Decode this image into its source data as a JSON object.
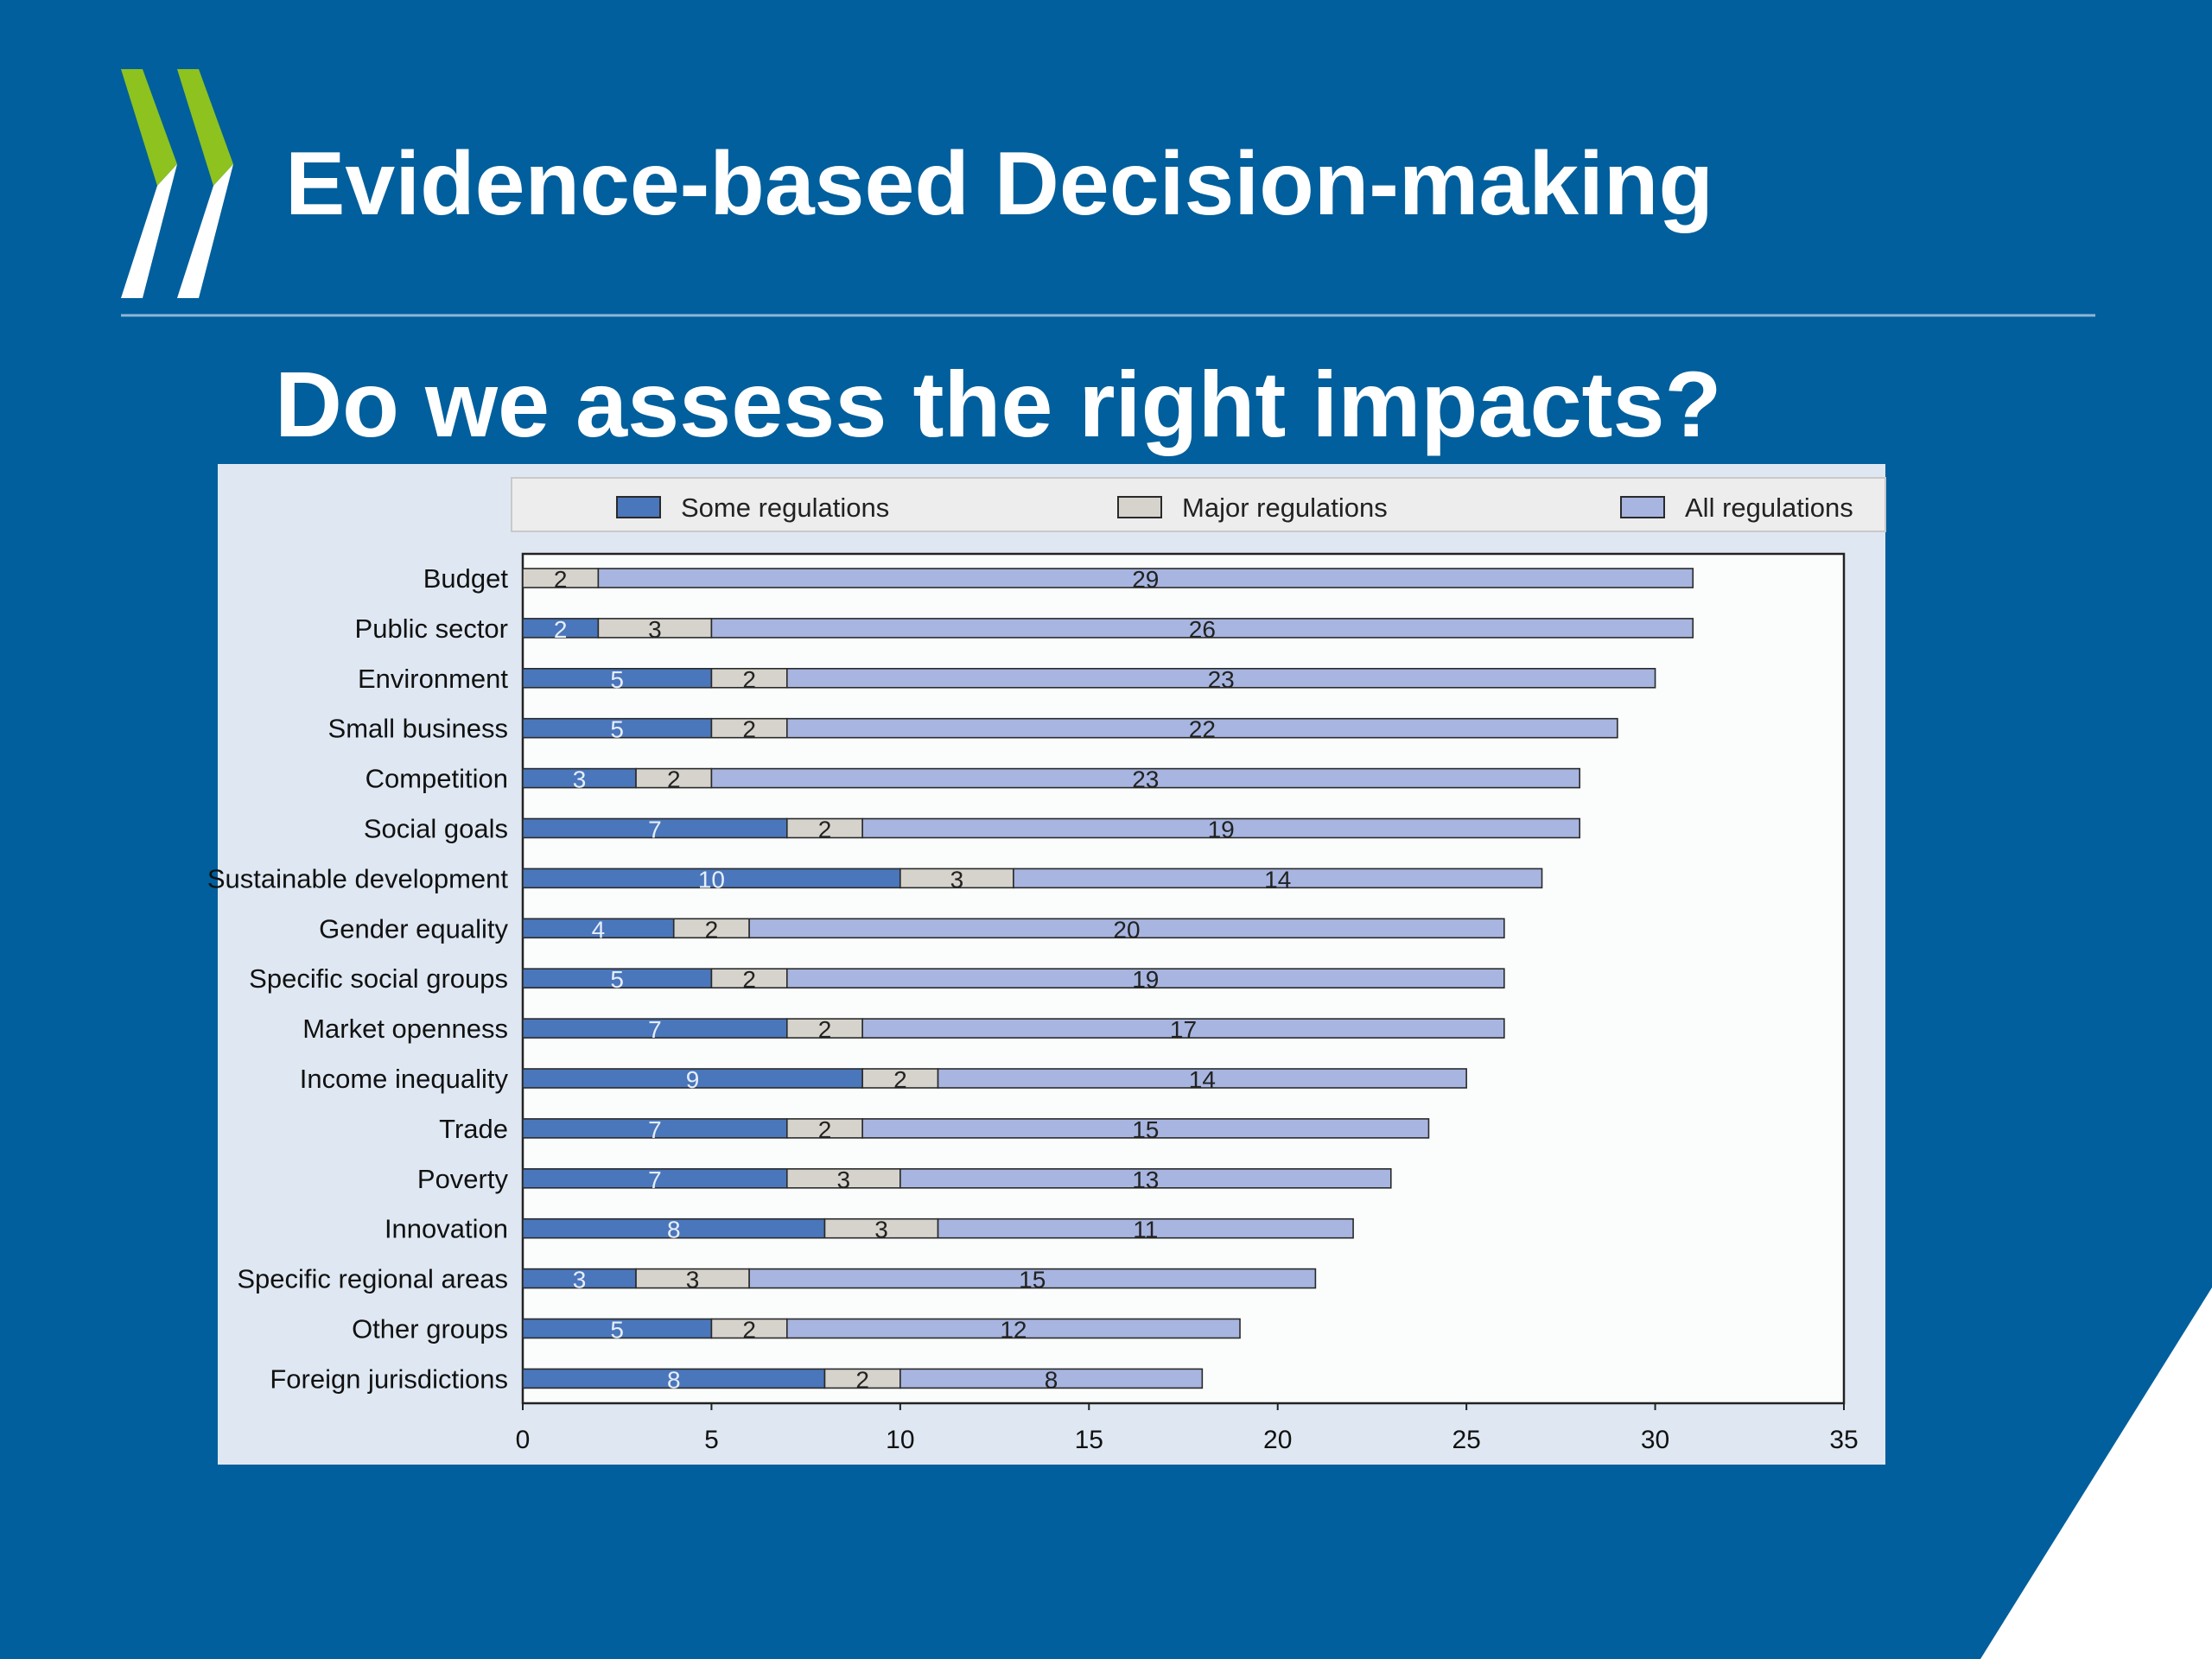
{
  "slide": {
    "title": "Evidence-based Decision-making",
    "subtitle": "Do we assess the right impacts?"
  },
  "colors": {
    "background": "#005f9c",
    "logo_green": "#8dc21f",
    "logo_white": "#ffffff",
    "chart_panel": "#dfe8f2",
    "plot_bg": "#fbfdfd",
    "legend_bg": "#ededed",
    "some": "#4a76bb",
    "major": "#d6d3cc",
    "all": "#a7b5e0"
  },
  "chart_data": {
    "type": "bar",
    "orientation": "horizontal",
    "stacked": true,
    "categories": [
      "Budget",
      "Public sector",
      "Environment",
      "Small business",
      "Competition",
      "Social goals",
      "Sustainable development",
      "Gender equality",
      "Specific social groups",
      "Market openness",
      "Income inequality",
      "Trade",
      "Poverty",
      "Innovation",
      "Specific regional areas",
      "Other groups",
      "Foreign jurisdictions"
    ],
    "series": [
      {
        "name": "Some regulations",
        "color": "#4a76bb",
        "values": [
          0,
          2,
          5,
          5,
          3,
          7,
          10,
          4,
          5,
          7,
          9,
          7,
          7,
          8,
          3,
          5,
          8
        ]
      },
      {
        "name": "Major regulations",
        "color": "#d6d3cc",
        "values": [
          2,
          3,
          2,
          2,
          2,
          2,
          3,
          2,
          2,
          2,
          2,
          2,
          3,
          3,
          3,
          2,
          2
        ]
      },
      {
        "name": "All regulations",
        "color": "#a7b5e0",
        "values": [
          29,
          26,
          23,
          22,
          23,
          19,
          14,
          20,
          19,
          17,
          14,
          15,
          13,
          11,
          15,
          12,
          8
        ]
      }
    ],
    "xlim": [
      0,
      35
    ],
    "xticks": [
      0,
      5,
      10,
      15,
      20,
      25,
      30,
      35
    ],
    "legend_position": "top",
    "grid": false
  }
}
